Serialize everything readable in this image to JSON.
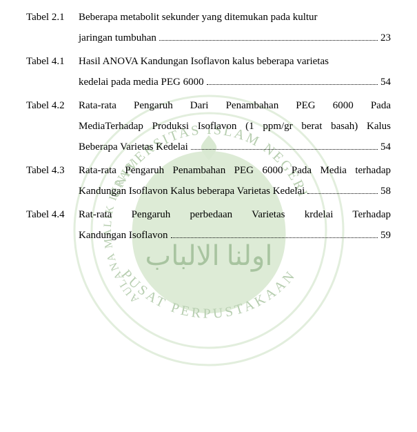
{
  "entries": [
    {
      "label": "Tabel 2.1",
      "lines": [
        {
          "text": "Beberapa metabolit sekunder yang ditemukan pada kultur",
          "fill": false
        },
        {
          "text": "jaringan tumbuhan",
          "fill": true,
          "page": "23"
        }
      ]
    },
    {
      "label": "Tabel 4.1",
      "lines": [
        {
          "text": "Hasil ANOVA Kandungan Isoflavon kalus beberapa varietas",
          "fill": false
        },
        {
          "text": " kedelai pada media PEG 6000",
          "fill": true,
          "page": "54"
        }
      ]
    },
    {
      "label": "Tabel 4.2",
      "lines": [
        {
          "text": " Rata-rata   Pengaruh  Dari  Penambahan  PEG  6000  Pada",
          "fill": false,
          "justify": true
        },
        {
          "text": "MediaTerhadap Produksi Isoflavon  (1 ppm/gr berat basah) Kalus",
          "fill": false,
          "justify": true
        },
        {
          "text": "Beberapa Varietas Kedelai",
          "fill": true,
          "page": " 54"
        }
      ]
    },
    {
      "label": "Tabel 4.3",
      "lines": [
        {
          "text": "  Rata-rata Pengaruh Penambahan PEG 6000 Pada Media terhadap",
          "fill": false,
          "justify": true
        },
        {
          "text": "Kandungan Isoflavon Kalus beberapa Varietas Kedelai",
          "fill": true,
          "page": "58"
        }
      ]
    },
    {
      "label": "Tabel 4.4",
      "lines": [
        {
          "text": "  Rat-rata    Pengaruh  perbedaan  Varietas  krdelai   Terhadap",
          "fill": false,
          "justify": true
        },
        {
          "text": "Kandungan Isoflavon",
          "fill": true,
          "page": "59"
        }
      ]
    }
  ],
  "watermark": {
    "outer_circle_color": "#e7f0e2",
    "inner_fill": "#e9f2e4",
    "seal_fill": "#cfe2c7",
    "text_top": "UNIVERSITAS ISLAM NEGERI",
    "text_left": "MAULANA MALIK IBRAHIM",
    "text_bottom": "PUSAT PERPUSTAKAAN",
    "text_color": "#9fbf9a",
    "arabic": "اولنا الالباب",
    "arabic_color": "#7fa57a"
  }
}
